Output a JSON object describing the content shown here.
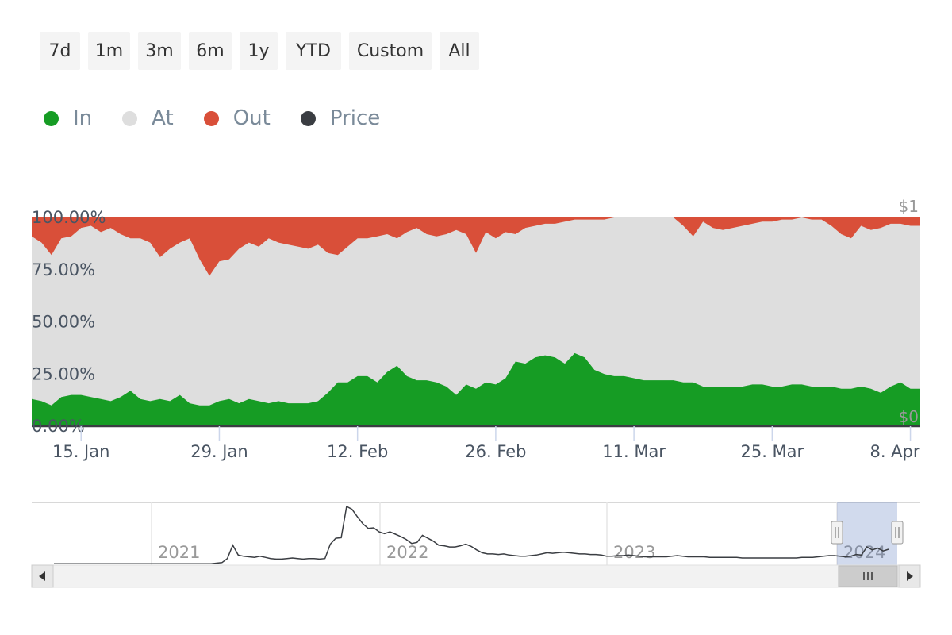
{
  "range_selector": {
    "buttons": [
      "7d",
      "1m",
      "3m",
      "6m",
      "1y",
      "YTD",
      "Custom",
      "All"
    ]
  },
  "legend": [
    {
      "label": "In",
      "color": "#169c24"
    },
    {
      "label": "At",
      "color": "#dedede"
    },
    {
      "label": "Out",
      "color": "#d94f39"
    },
    {
      "label": "Price",
      "color": "#3a3d42"
    }
  ],
  "chart_data": {
    "type": "area",
    "stacking": "percent",
    "x_start": "2024-01-10",
    "x_end": "2024-04-09",
    "x_tick_labels": [
      "15. Jan",
      "29. Jan",
      "12. Feb",
      "26. Feb",
      "11. Mar",
      "25. Mar",
      "8. Apr"
    ],
    "y_tick_labels": [
      "0.00%",
      "25.00%",
      "50.00%",
      "75.00%",
      "100.00%"
    ],
    "ylim": [
      0,
      100
    ],
    "price_axis_labels": [
      "$1",
      "$0"
    ],
    "series": [
      {
        "name": "In",
        "color": "#169c24",
        "values": [
          13,
          12,
          10,
          14,
          15,
          15,
          14,
          13,
          12,
          14,
          17,
          13,
          12,
          13,
          12,
          15,
          11,
          10,
          10,
          12,
          13,
          11,
          13,
          12,
          11,
          12,
          11,
          11,
          11,
          12,
          16,
          21,
          21,
          24,
          24,
          21,
          26,
          29,
          24,
          22,
          22,
          21,
          19,
          15,
          20,
          18,
          21,
          20,
          23,
          31,
          30,
          33,
          34,
          33,
          30,
          35,
          33,
          27,
          25,
          24,
          24,
          23,
          22,
          22,
          22,
          22,
          21,
          21,
          19,
          19,
          19,
          19,
          19,
          20,
          20,
          19,
          19,
          20,
          20,
          19,
          19,
          19,
          18,
          18,
          19,
          18,
          16,
          19,
          21,
          18,
          18
        ]
      },
      {
        "name": "Out",
        "color": "#d94f39",
        "values": [
          9,
          12,
          18,
          10,
          9,
          5,
          4,
          7,
          5,
          8,
          10,
          10,
          12,
          19,
          15,
          12,
          10,
          20,
          28,
          21,
          20,
          15,
          12,
          14,
          10,
          12,
          13,
          14,
          15,
          13,
          17,
          18,
          14,
          10,
          10,
          9,
          8,
          10,
          7,
          5,
          8,
          9,
          8,
          6,
          8,
          17,
          7,
          10,
          7,
          8,
          5,
          4,
          3,
          3,
          2,
          1,
          1,
          1,
          1,
          0,
          0,
          0,
          0,
          0,
          0,
          0,
          4,
          9,
          2,
          5,
          6,
          5,
          4,
          3,
          2,
          2,
          1,
          1,
          0,
          1,
          1,
          4,
          8,
          10,
          4,
          6,
          5,
          3,
          3,
          4,
          4
        ]
      },
      {
        "name": "Price",
        "color": "#3a3d42",
        "values": []
      }
    ]
  },
  "navigator": {
    "year_labels": [
      "2021",
      "2022",
      "2023",
      "2024"
    ],
    "price_values": [
      0.01,
      0.01,
      0.01,
      0.01,
      0.01,
      0.01,
      0.01,
      0.01,
      0.01,
      0.01,
      0.01,
      0.01,
      0.01,
      0.01,
      0.01,
      0.01,
      0.01,
      0.01,
      0.01,
      0.01,
      0.01,
      0.01,
      0.01,
      0.01,
      0.01,
      0.01,
      0.01,
      0.01,
      0.01,
      0.01,
      0.02,
      0.03,
      0.1,
      0.33,
      0.16,
      0.14,
      0.13,
      0.12,
      0.14,
      0.12,
      0.1,
      0.09,
      0.09,
      0.1,
      0.11,
      0.1,
      0.09,
      0.1,
      0.1,
      0.09,
      0.1,
      0.35,
      0.45,
      0.46,
      1.0,
      0.95,
      0.82,
      0.7,
      0.62,
      0.63,
      0.56,
      0.53,
      0.56,
      0.52,
      0.48,
      0.43,
      0.36,
      0.38,
      0.5,
      0.45,
      0.4,
      0.33,
      0.32,
      0.3,
      0.3,
      0.32,
      0.35,
      0.31,
      0.25,
      0.2,
      0.18,
      0.18,
      0.17,
      0.18,
      0.16,
      0.15,
      0.14,
      0.14,
      0.15,
      0.16,
      0.18,
      0.2,
      0.19,
      0.2,
      0.21,
      0.2,
      0.19,
      0.18,
      0.18,
      0.17,
      0.17,
      0.16,
      0.14,
      0.14,
      0.15,
      0.15,
      0.16,
      0.15,
      0.14,
      0.13,
      0.13,
      0.13,
      0.13,
      0.13,
      0.14,
      0.15,
      0.14,
      0.13,
      0.13,
      0.13,
      0.13,
      0.12,
      0.12,
      0.12,
      0.12,
      0.12,
      0.12,
      0.11,
      0.11,
      0.11,
      0.11,
      0.11,
      0.11,
      0.11,
      0.11,
      0.11,
      0.11,
      0.11,
      0.12,
      0.12,
      0.12,
      0.13,
      0.14,
      0.15,
      0.15,
      0.14,
      0.13,
      0.14,
      0.17,
      0.16,
      0.3,
      0.25,
      0.28,
      0.23,
      0.26
    ]
  }
}
